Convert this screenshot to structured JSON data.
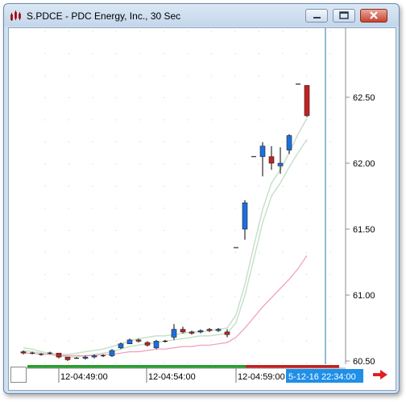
{
  "window": {
    "title": "S.PDCE - PDC Energy, Inc., 30 Sec",
    "minimize_icon": "minimize-icon",
    "maximize_icon": "maximize-icon",
    "close_icon": "close-icon",
    "app_icon": "chart-app-icon"
  },
  "colors": {
    "up_candle": "#1c6fe0",
    "down_candle": "#c62020",
    "ma_fast": "#c8e0c8",
    "ma_slow": "#f09ab8",
    "cursor_line": "#1e7f9a",
    "time_bar_green": "#25a02c",
    "time_bar_red": "#c62020",
    "time_highlight": "#1f8fe8"
  },
  "time_axis": {
    "labels": [
      "12-04:49:00",
      "12-04:54:00",
      "12-04:59:00"
    ],
    "cursor_label": "5-12-16 22:34:00"
  },
  "chart_data": {
    "type": "candlestick",
    "title": "",
    "y_ticks": [
      "62.50",
      "62.00",
      "61.50",
      "61.00",
      "60.50"
    ],
    "ylim": [
      60.47,
      62.9
    ],
    "candles": [
      {
        "o": 60.57,
        "h": 60.58,
        "l": 60.55,
        "c": 60.56
      },
      {
        "o": 60.56,
        "h": 60.57,
        "l": 60.55,
        "c": 60.56
      },
      {
        "o": 60.55,
        "h": 60.56,
        "l": 60.54,
        "c": 60.55
      },
      {
        "o": 60.56,
        "h": 60.57,
        "l": 60.55,
        "c": 60.56
      },
      {
        "o": 60.56,
        "h": 60.56,
        "l": 60.52,
        "c": 60.53
      },
      {
        "o": 60.53,
        "h": 60.53,
        "l": 60.5,
        "c": 60.51
      },
      {
        "o": 60.52,
        "h": 60.53,
        "l": 60.52,
        "c": 60.52
      },
      {
        "o": 60.52,
        "h": 60.54,
        "l": 60.51,
        "c": 60.53
      },
      {
        "o": 60.53,
        "h": 60.55,
        "l": 60.52,
        "c": 60.54
      },
      {
        "o": 60.54,
        "h": 60.55,
        "l": 60.53,
        "c": 60.54
      },
      {
        "o": 60.54,
        "h": 60.59,
        "l": 60.53,
        "c": 60.58
      },
      {
        "o": 60.6,
        "h": 60.64,
        "l": 60.59,
        "c": 60.63
      },
      {
        "o": 60.63,
        "h": 60.67,
        "l": 60.63,
        "c": 60.66
      },
      {
        "o": 60.66,
        "h": 60.67,
        "l": 60.64,
        "c": 60.65
      },
      {
        "o": 60.64,
        "h": 60.65,
        "l": 60.61,
        "c": 60.62
      },
      {
        "o": 60.6,
        "h": 60.66,
        "l": 60.59,
        "c": 60.65
      },
      {
        "o": 60.65,
        "h": 60.66,
        "l": 60.64,
        "c": 60.65
      },
      {
        "o": 60.68,
        "h": 60.78,
        "l": 60.66,
        "c": 60.74
      },
      {
        "o": 60.74,
        "h": 60.76,
        "l": 60.71,
        "c": 60.72
      },
      {
        "o": 60.72,
        "h": 60.73,
        "l": 60.7,
        "c": 60.71
      },
      {
        "o": 60.72,
        "h": 60.74,
        "l": 60.71,
        "c": 60.73
      },
      {
        "o": 60.74,
        "h": 60.75,
        "l": 60.72,
        "c": 60.73
      },
      {
        "o": 60.73,
        "h": 60.75,
        "l": 60.72,
        "c": 60.74
      },
      {
        "o": 60.72,
        "h": 60.74,
        "l": 60.68,
        "c": 60.7
      },
      {
        "o": 61.36,
        "h": 61.36,
        "l": 61.36,
        "c": 61.36
      },
      {
        "o": 61.5,
        "h": 61.72,
        "l": 61.42,
        "c": 61.7
      },
      {
        "o": 62.05,
        "h": 62.05,
        "l": 62.05,
        "c": 62.05
      },
      {
        "o": 62.05,
        "h": 62.16,
        "l": 61.9,
        "c": 62.13
      },
      {
        "o": 62.05,
        "h": 62.13,
        "l": 61.95,
        "c": 62.0
      },
      {
        "o": 61.98,
        "h": 62.12,
        "l": 61.92,
        "c": 62.0
      },
      {
        "o": 62.1,
        "h": 62.22,
        "l": 62.07,
        "c": 62.21
      },
      {
        "o": 62.6,
        "h": 62.6,
        "l": 62.6,
        "c": 62.6
      },
      {
        "o": 62.59,
        "h": 62.59,
        "l": 62.35,
        "c": 62.36
      }
    ],
    "ma_fast_upper": [
      60.6,
      60.59,
      60.57,
      60.56,
      60.55,
      60.55,
      60.56,
      60.57,
      60.58,
      60.59,
      60.61,
      60.63,
      60.65,
      60.67,
      60.68,
      60.69,
      60.69,
      60.7,
      60.71,
      60.72,
      60.72,
      60.73,
      60.74,
      60.75,
      60.85,
      61.08,
      61.37,
      61.65,
      61.85,
      61.95,
      62.08,
      62.22,
      62.34
    ],
    "ma_fast_lower": [
      60.58,
      60.57,
      60.56,
      60.55,
      60.54,
      60.53,
      60.53,
      60.54,
      60.55,
      60.56,
      60.57,
      60.59,
      60.61,
      60.62,
      60.63,
      60.64,
      60.65,
      60.66,
      60.67,
      60.68,
      60.69,
      60.69,
      60.7,
      60.71,
      60.79,
      61.0,
      61.27,
      61.55,
      61.75,
      61.85,
      61.97,
      62.08,
      62.18
    ],
    "ma_slow": [
      60.56,
      60.56,
      60.55,
      60.55,
      60.54,
      60.54,
      60.54,
      60.54,
      60.54,
      60.55,
      60.55,
      60.56,
      60.57,
      60.57,
      60.58,
      60.59,
      60.59,
      60.6,
      60.61,
      60.61,
      60.62,
      60.62,
      60.63,
      60.64,
      60.68,
      60.75,
      60.83,
      60.91,
      60.98,
      61.05,
      61.12,
      61.2,
      61.3
    ]
  }
}
